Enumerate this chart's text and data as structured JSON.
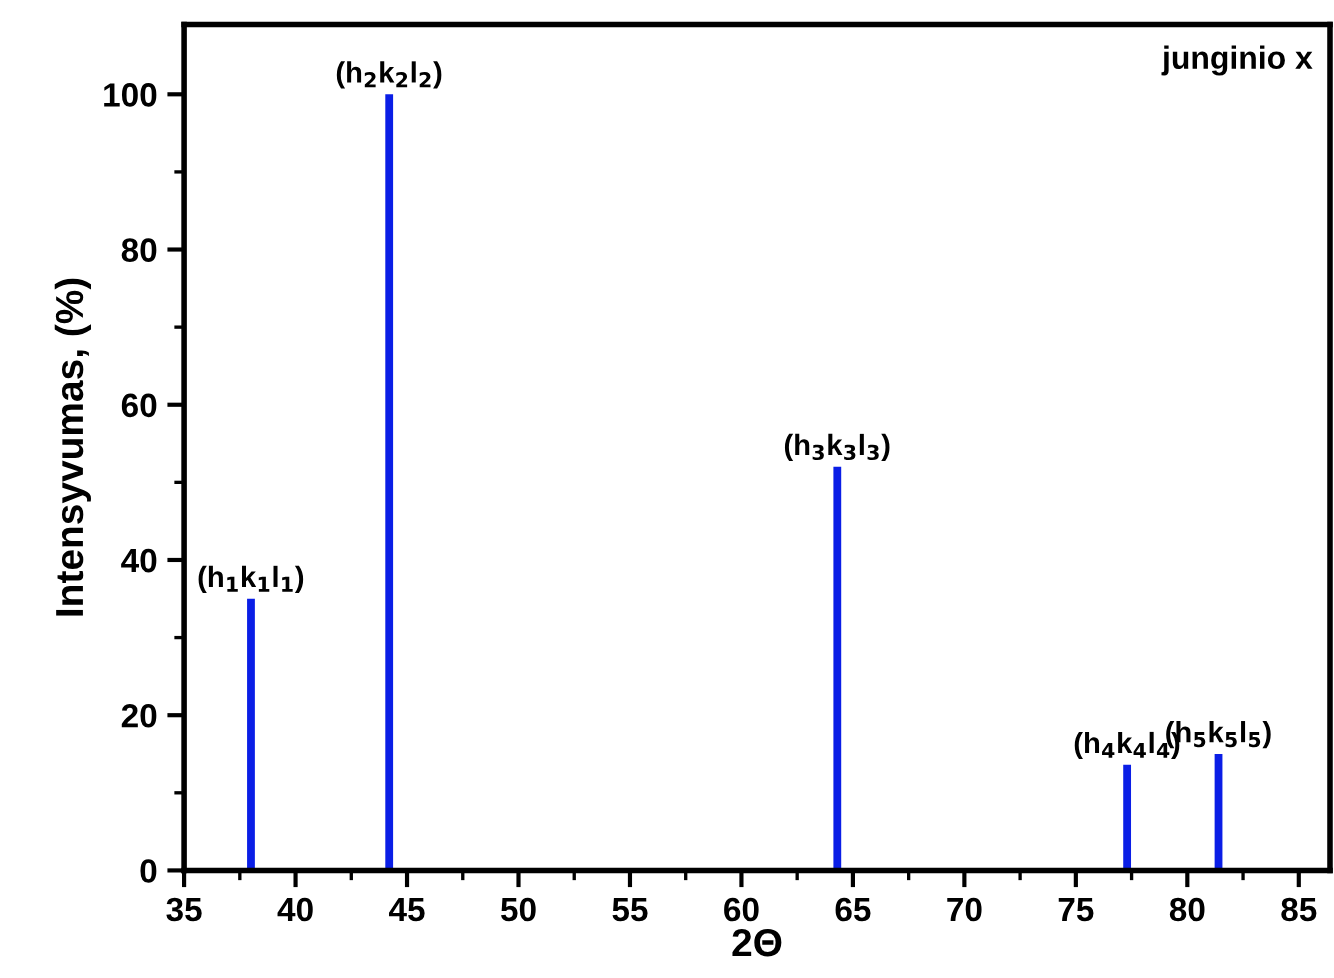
{
  "chart_data": {
    "type": "bar",
    "xlabel": "2Θ",
    "ylabel": "Intensyvumas, (%)",
    "x": [
      38.0,
      44.2,
      64.3,
      77.3,
      81.4
    ],
    "values": [
      35,
      100,
      52,
      13.6,
      15
    ],
    "color": "#0a1ee6",
    "xlim": [
      35,
      86.4
    ],
    "xticks": [
      35,
      40,
      45,
      50,
      55,
      60,
      65,
      70,
      75,
      80,
      85
    ],
    "ylim": [
      0,
      109
    ],
    "yticks": [
      0,
      20,
      40,
      60,
      80,
      100
    ],
    "grid": false,
    "annotations": [
      {
        "text": "(h$_{1}$k$_{1}$l$_{1}$)",
        "x": 38.0,
        "y": 35
      },
      {
        "text": "(h$_{2}$k$_{2}$l$_{2}$)",
        "x": 44.2,
        "y": 100
      },
      {
        "text": "(h$_{3}$k$_{3}$l$_{3}$)",
        "x": 64.3,
        "y": 52
      },
      {
        "text": "(h$_{4}$k$_{4}$l$_{4}$)",
        "x": 77.3,
        "y": 13.6
      },
      {
        "text": "(h$_{5}$k$_{5}$l$_{5}$)",
        "x": 81.4,
        "y": 15
      },
      "junginio x"
    ]
  }
}
